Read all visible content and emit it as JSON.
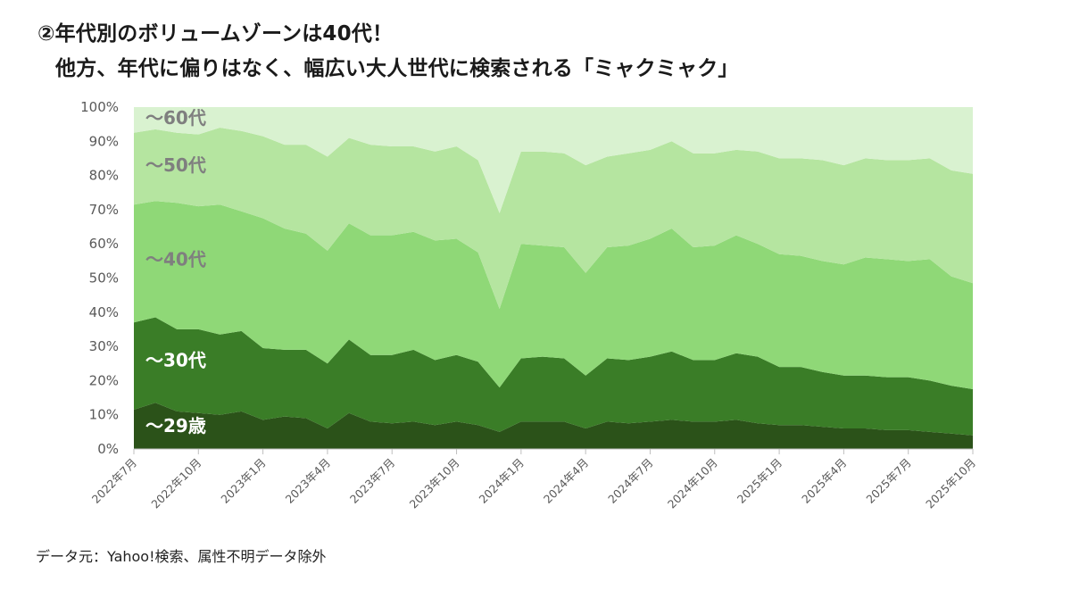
{
  "titles": {
    "line1": "②年代別のボリュームゾーンは40代！",
    "line2": "他方、年代に偏りはなく、幅広い大人世代に検索される「ミャクミャク」"
  },
  "footer": "データ元：Yahoo!検索、属性不明データ除外",
  "chart_data": {
    "type": "area",
    "stacked": true,
    "normalized_percent": true,
    "ylim": [
      0,
      100
    ],
    "yticks": [
      "0%",
      "10%",
      "20%",
      "30%",
      "40%",
      "50%",
      "60%",
      "70%",
      "80%",
      "90%",
      "100%"
    ],
    "x": [
      "2022年7月",
      "2022年8月",
      "2022年9月",
      "2022年10月",
      "2022年11月",
      "2022年12月",
      "2023年1月",
      "2023年2月",
      "2023年3月",
      "2023年4月",
      "2023年5月",
      "2023年6月",
      "2023年7月",
      "2023年8月",
      "2023年9月",
      "2023年10月",
      "2023年11月",
      "2023年12月",
      "2024年1月",
      "2024年2月",
      "2024年3月",
      "2024年4月",
      "2024年5月",
      "2024年6月",
      "2024年7月",
      "2024年8月",
      "2024年9月",
      "2024年10月",
      "2024年11月",
      "2024年12月",
      "2025年1月",
      "2025年2月",
      "2025年3月",
      "2025年4月",
      "2025年5月",
      "2025年6月",
      "2025年7月",
      "2025年8月",
      "2025年9月",
      "2025年10月"
    ],
    "xtick_labels": [
      "2022年7月",
      "2022年10月",
      "2023年1月",
      "2023年4月",
      "2023年7月",
      "2023年10月",
      "2024年1月",
      "2024年4月",
      "2024年7月",
      "2024年10月",
      "2025年1月",
      "2025年4月",
      "2025年7月",
      "2025年10月"
    ],
    "series": [
      {
        "name": "～29歳",
        "color": "#2b5219",
        "values": [
          11.5,
          13.5,
          11,
          10.5,
          10,
          11,
          8.5,
          9.5,
          9,
          6,
          10.5,
          8,
          7.5,
          8,
          7,
          8,
          7,
          5,
          8,
          8,
          8,
          6,
          8,
          7.5,
          8,
          8.5,
          8,
          8,
          8.5,
          7.5,
          7,
          7,
          6.5,
          6,
          6,
          5.5,
          5.5,
          5,
          4.5,
          4
        ]
      },
      {
        "name": "～30代",
        "color": "#3a7d27",
        "values": [
          25.5,
          25,
          24,
          24.5,
          23.5,
          23.5,
          21,
          19.5,
          20,
          19,
          21.5,
          19.5,
          20,
          21,
          19,
          19.5,
          18.5,
          13,
          18.5,
          19,
          18.5,
          15.5,
          18.5,
          18.5,
          19,
          20,
          18,
          18,
          19.5,
          19.5,
          17,
          17,
          16,
          15.5,
          15.5,
          15.5,
          15.5,
          15,
          14,
          13.5
        ]
      },
      {
        "name": "～40代",
        "color": "#8fd877",
        "values": [
          34.5,
          34,
          37,
          36,
          38,
          35,
          38,
          35.5,
          34,
          33,
          34,
          35,
          35,
          34.5,
          35,
          34,
          32,
          23,
          33.5,
          32.5,
          32.5,
          30,
          32.5,
          33.5,
          34.5,
          36,
          33,
          33.5,
          34.5,
          33,
          33,
          32.5,
          32.5,
          32.5,
          34.5,
          34.5,
          34,
          35.5,
          32,
          31
        ]
      },
      {
        "name": "～50代",
        "color": "#b5e5a0",
        "values": [
          21,
          21,
          20.5,
          21,
          22.5,
          23.5,
          24,
          24.5,
          26,
          27.5,
          25,
          26.5,
          26,
          25,
          26,
          27,
          27,
          28,
          27,
          27.5,
          27.5,
          31.5,
          26.5,
          27,
          26,
          25.5,
          27.5,
          27,
          25,
          27,
          28,
          28.5,
          29.5,
          29,
          29,
          29,
          29.5,
          29.5,
          31,
          32
        ]
      },
      {
        "name": "～60代",
        "color": "#d9f2d0",
        "values": [
          7.5,
          6.5,
          7.5,
          8,
          6,
          7,
          8.5,
          11,
          11,
          14.5,
          9,
          11,
          11.5,
          11.5,
          13,
          11.5,
          15.5,
          31,
          13,
          13,
          13.5,
          17,
          14.5,
          13.5,
          12.5,
          10,
          13.5,
          13.5,
          12.5,
          13,
          15,
          15,
          15.5,
          17,
          15,
          15.5,
          15.5,
          15,
          18.5,
          19.5
        ]
      }
    ]
  }
}
